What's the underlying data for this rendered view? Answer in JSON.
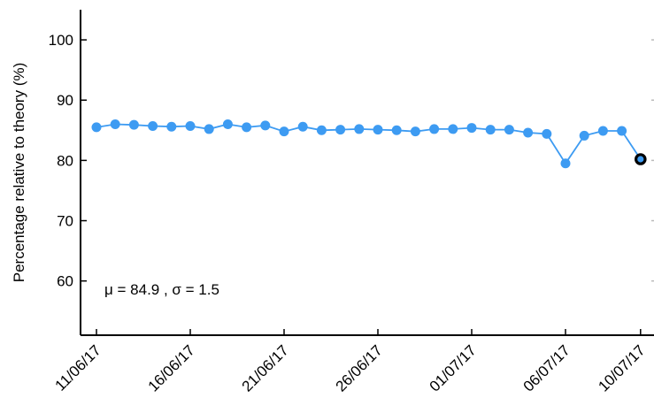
{
  "chart_data": {
    "type": "line",
    "title": "",
    "xlabel": "",
    "ylabel": "Percentage relative to theory (%)",
    "annotation": "μ = 84.9 , σ = 1.5",
    "x_tick_labels": [
      "11/06/17",
      "16/06/17",
      "21/06/17",
      "26/06/17",
      "01/07/17",
      "06/07/17",
      "10/07/17"
    ],
    "y_ticks": [
      60,
      70,
      80,
      90,
      100
    ],
    "ylim": [
      51,
      105
    ],
    "xlim": [
      "10/06/17",
      "11/07/17"
    ],
    "grid": false,
    "series": [
      {
        "color": "#3d9bf2",
        "x": [
          "11/06/17",
          "12/06/17",
          "13/06/17",
          "14/06/17",
          "15/06/17",
          "16/06/17",
          "17/06/17",
          "18/06/17",
          "19/06/17",
          "20/06/17",
          "21/06/17",
          "22/06/17",
          "23/06/17",
          "24/06/17",
          "25/06/17",
          "26/06/17",
          "27/06/17",
          "28/06/17",
          "29/06/17",
          "30/06/17",
          "01/07/17",
          "02/07/17",
          "03/07/17",
          "04/07/17",
          "05/07/17",
          "06/07/17",
          "07/07/17",
          "08/07/17",
          "09/07/17",
          "10/07/17"
        ],
        "y": [
          85.5,
          86.0,
          85.9,
          85.7,
          85.6,
          85.7,
          85.2,
          86.0,
          85.5,
          85.8,
          84.8,
          85.6,
          85.0,
          85.1,
          85.2,
          85.1,
          85.0,
          84.8,
          85.2,
          85.2,
          85.4,
          85.1,
          85.1,
          84.6,
          84.4,
          79.5,
          84.1,
          84.9,
          84.9,
          80.2
        ]
      }
    ],
    "highlight_point": {
      "x": "10/07/17",
      "y": 80.2,
      "fill": "#3d9bf2",
      "stroke": "#000000"
    }
  }
}
